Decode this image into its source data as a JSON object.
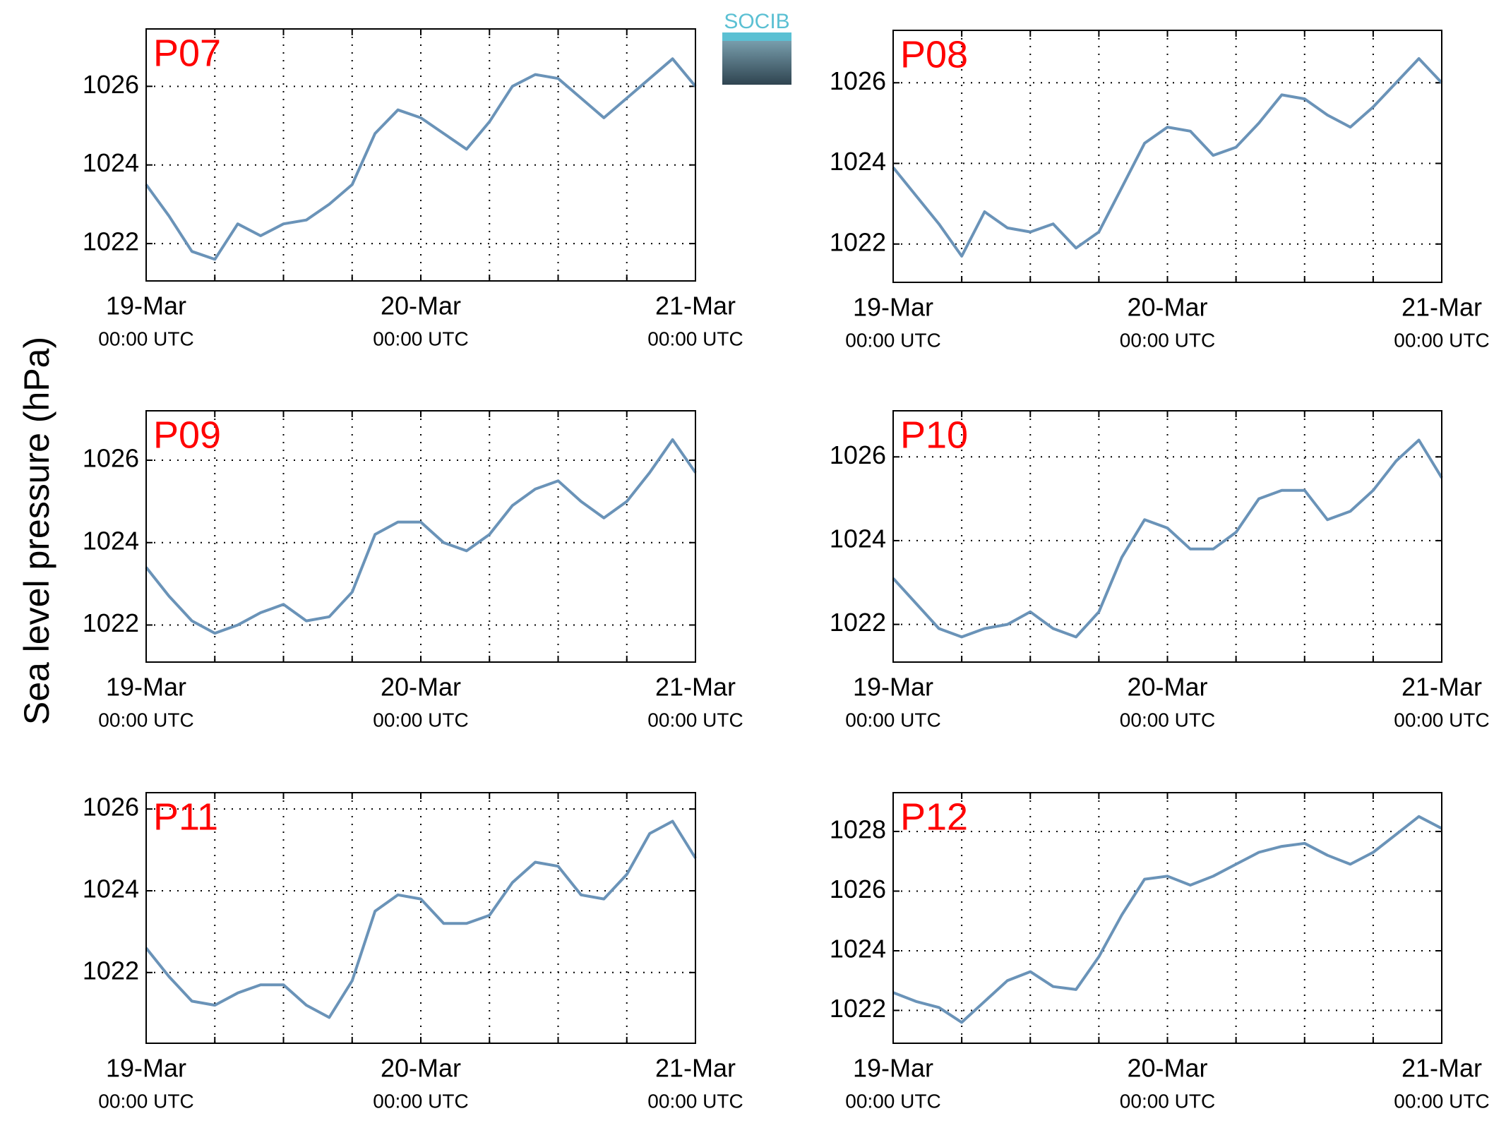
{
  "ylabel": "Sea level pressure (hPa)",
  "logo": "SOCIB",
  "chart_data": [
    {
      "type": "line",
      "title": "P07",
      "color": "#6a93b8",
      "grid": true,
      "x": [
        0,
        2,
        4,
        6,
        8,
        10,
        12,
        14,
        16,
        18,
        20,
        22,
        24,
        26,
        28,
        30,
        32,
        34,
        36,
        38,
        40,
        42,
        44,
        46,
        48
      ],
      "values": [
        1023.5,
        1022.7,
        1021.8,
        1021.6,
        1022.5,
        1022.2,
        1022.5,
        1022.6,
        1023.0,
        1023.5,
        1024.8,
        1025.4,
        1025.2,
        1024.8,
        1024.4,
        1025.1,
        1026.0,
        1026.3,
        1026.2,
        1025.7,
        1025.2,
        1025.7,
        1026.2,
        1026.7,
        1026.0
      ],
      "xlim": [
        0,
        48
      ],
      "ylim": [
        1021.05,
        1027.46
      ],
      "yticks": [
        1022,
        1024,
        1026
      ],
      "xticks": [
        {
          "value": 0,
          "label": "19-Mar",
          "sublabel": "00:00 UTC"
        },
        {
          "value": 6,
          "label": null
        },
        {
          "value": 12,
          "label": null
        },
        {
          "value": 18,
          "label": null
        },
        {
          "value": 24,
          "label": "20-Mar",
          "sublabel": "00:00 UTC"
        },
        {
          "value": 30,
          "label": null
        },
        {
          "value": 36,
          "label": null
        },
        {
          "value": 42,
          "label": null
        },
        {
          "value": 48,
          "label": "21-Mar",
          "sublabel": "00:00 UTC"
        }
      ]
    },
    {
      "type": "line",
      "title": "P08",
      "color": "#6a93b8",
      "grid": true,
      "x": [
        0,
        2,
        4,
        6,
        8,
        10,
        12,
        14,
        16,
        18,
        20,
        22,
        24,
        26,
        28,
        30,
        32,
        34,
        36,
        38,
        40,
        42,
        44,
        46,
        48
      ],
      "values": [
        1023.9,
        1023.2,
        1022.5,
        1021.7,
        1022.8,
        1022.4,
        1022.3,
        1022.5,
        1021.9,
        1022.3,
        1023.4,
        1024.5,
        1024.9,
        1024.8,
        1024.2,
        1024.4,
        1025.0,
        1025.7,
        1025.6,
        1025.2,
        1024.9,
        1025.4,
        1026.0,
        1026.6,
        1026.0
      ],
      "xlim": [
        0,
        48
      ],
      "ylim": [
        1021.05,
        1027.3
      ],
      "yticks": [
        1022,
        1024,
        1026
      ],
      "xticks": [
        {
          "value": 0,
          "label": "19-Mar",
          "sublabel": "00:00 UTC"
        },
        {
          "value": 6,
          "label": null
        },
        {
          "value": 12,
          "label": null
        },
        {
          "value": 18,
          "label": null
        },
        {
          "value": 24,
          "label": "20-Mar",
          "sublabel": "00:00 UTC"
        },
        {
          "value": 30,
          "label": null
        },
        {
          "value": 36,
          "label": null
        },
        {
          "value": 42,
          "label": null
        },
        {
          "value": 48,
          "label": "21-Mar",
          "sublabel": "00:00 UTC"
        }
      ]
    },
    {
      "type": "line",
      "title": "P09",
      "color": "#6a93b8",
      "grid": true,
      "x": [
        0,
        2,
        4,
        6,
        8,
        10,
        12,
        14,
        16,
        18,
        20,
        22,
        24,
        26,
        28,
        30,
        32,
        34,
        36,
        38,
        40,
        42,
        44,
        46,
        48
      ],
      "values": [
        1023.4,
        1022.7,
        1022.1,
        1021.8,
        1022.0,
        1022.3,
        1022.5,
        1022.1,
        1022.2,
        1022.8,
        1024.2,
        1024.5,
        1024.5,
        1024.0,
        1023.8,
        1024.2,
        1024.9,
        1025.3,
        1025.5,
        1025.0,
        1024.6,
        1025.0,
        1025.7,
        1026.5,
        1025.7
      ],
      "xlim": [
        0,
        48
      ],
      "ylim": [
        1021.1,
        1027.2
      ],
      "yticks": [
        1022,
        1024,
        1026
      ],
      "xticks": [
        {
          "value": 0,
          "label": "19-Mar",
          "sublabel": "00:00 UTC"
        },
        {
          "value": 6,
          "label": null
        },
        {
          "value": 12,
          "label": null
        },
        {
          "value": 18,
          "label": null
        },
        {
          "value": 24,
          "label": "20-Mar",
          "sublabel": "00:00 UTC"
        },
        {
          "value": 30,
          "label": null
        },
        {
          "value": 36,
          "label": null
        },
        {
          "value": 42,
          "label": null
        },
        {
          "value": 48,
          "label": "21-Mar",
          "sublabel": "00:00 UTC"
        }
      ]
    },
    {
      "type": "line",
      "title": "P10",
      "color": "#6a93b8",
      "grid": true,
      "x": [
        0,
        2,
        4,
        6,
        8,
        10,
        12,
        14,
        16,
        18,
        20,
        22,
        24,
        26,
        28,
        30,
        32,
        34,
        36,
        38,
        40,
        42,
        44,
        46,
        48
      ],
      "values": [
        1023.1,
        1022.5,
        1021.9,
        1021.7,
        1021.9,
        1022.0,
        1022.3,
        1021.9,
        1021.7,
        1022.3,
        1023.6,
        1024.5,
        1024.3,
        1023.8,
        1023.8,
        1024.2,
        1025.0,
        1025.2,
        1025.2,
        1024.5,
        1024.7,
        1025.2,
        1025.9,
        1026.4,
        1025.5
      ],
      "xlim": [
        0,
        48
      ],
      "ylim": [
        1021.1,
        1027.1
      ],
      "yticks": [
        1022,
        1024,
        1026
      ],
      "xticks": [
        {
          "value": 0,
          "label": "19-Mar",
          "sublabel": "00:00 UTC"
        },
        {
          "value": 6,
          "label": null
        },
        {
          "value": 12,
          "label": null
        },
        {
          "value": 18,
          "label": null
        },
        {
          "value": 24,
          "label": "20-Mar",
          "sublabel": "00:00 UTC"
        },
        {
          "value": 30,
          "label": null
        },
        {
          "value": 36,
          "label": null
        },
        {
          "value": 42,
          "label": null
        },
        {
          "value": 48,
          "label": "21-Mar",
          "sublabel": "00:00 UTC"
        }
      ]
    },
    {
      "type": "line",
      "title": "P11",
      "color": "#6a93b8",
      "grid": true,
      "x": [
        0,
        2,
        4,
        6,
        8,
        10,
        12,
        14,
        16,
        18,
        20,
        22,
        24,
        26,
        28,
        30,
        32,
        34,
        36,
        38,
        40,
        42,
        44,
        46,
        48
      ],
      "values": [
        1022.6,
        1021.9,
        1021.3,
        1021.2,
        1021.5,
        1021.7,
        1021.7,
        1021.2,
        1020.9,
        1021.8,
        1023.5,
        1023.9,
        1023.8,
        1023.2,
        1023.2,
        1023.4,
        1024.2,
        1024.7,
        1024.6,
        1023.9,
        1023.8,
        1024.4,
        1025.4,
        1025.7,
        1024.8
      ],
      "xlim": [
        0,
        48
      ],
      "ylim": [
        1020.27,
        1026.4
      ],
      "yticks": [
        1022,
        1024,
        1026
      ],
      "xticks": [
        {
          "value": 0,
          "label": "19-Mar",
          "sublabel": "00:00 UTC"
        },
        {
          "value": 6,
          "label": null
        },
        {
          "value": 12,
          "label": null
        },
        {
          "value": 18,
          "label": null
        },
        {
          "value": 24,
          "label": "20-Mar",
          "sublabel": "00:00 UTC"
        },
        {
          "value": 30,
          "label": null
        },
        {
          "value": 36,
          "label": null
        },
        {
          "value": 42,
          "label": null
        },
        {
          "value": 48,
          "label": "21-Mar",
          "sublabel": "00:00 UTC"
        }
      ]
    },
    {
      "type": "line",
      "title": "P12",
      "color": "#6a93b8",
      "grid": true,
      "x": [
        0,
        2,
        4,
        6,
        8,
        10,
        12,
        14,
        16,
        18,
        20,
        22,
        24,
        26,
        28,
        30,
        32,
        34,
        36,
        38,
        40,
        42,
        44,
        46,
        48
      ],
      "values": [
        1022.6,
        1022.3,
        1022.1,
        1021.6,
        1022.3,
        1023.0,
        1023.3,
        1022.8,
        1022.7,
        1023.8,
        1025.2,
        1026.4,
        1026.5,
        1026.2,
        1026.5,
        1026.9,
        1027.3,
        1027.5,
        1027.6,
        1027.2,
        1026.9,
        1027.3,
        1027.9,
        1028.5,
        1028.1
      ],
      "xlim": [
        0,
        48
      ],
      "ylim": [
        1020.9,
        1029.3
      ],
      "yticks": [
        1022,
        1024,
        1026,
        1028
      ],
      "xticks": [
        {
          "value": 0,
          "label": "19-Mar",
          "sublabel": "00:00 UTC"
        },
        {
          "value": 6,
          "label": null
        },
        {
          "value": 12,
          "label": null
        },
        {
          "value": 18,
          "label": null
        },
        {
          "value": 24,
          "label": "20-Mar",
          "sublabel": "00:00 UTC"
        },
        {
          "value": 30,
          "label": null
        },
        {
          "value": 36,
          "label": null
        },
        {
          "value": 42,
          "label": null
        },
        {
          "value": 48,
          "label": "21-Mar",
          "sublabel": "00:00 UTC"
        }
      ]
    }
  ]
}
